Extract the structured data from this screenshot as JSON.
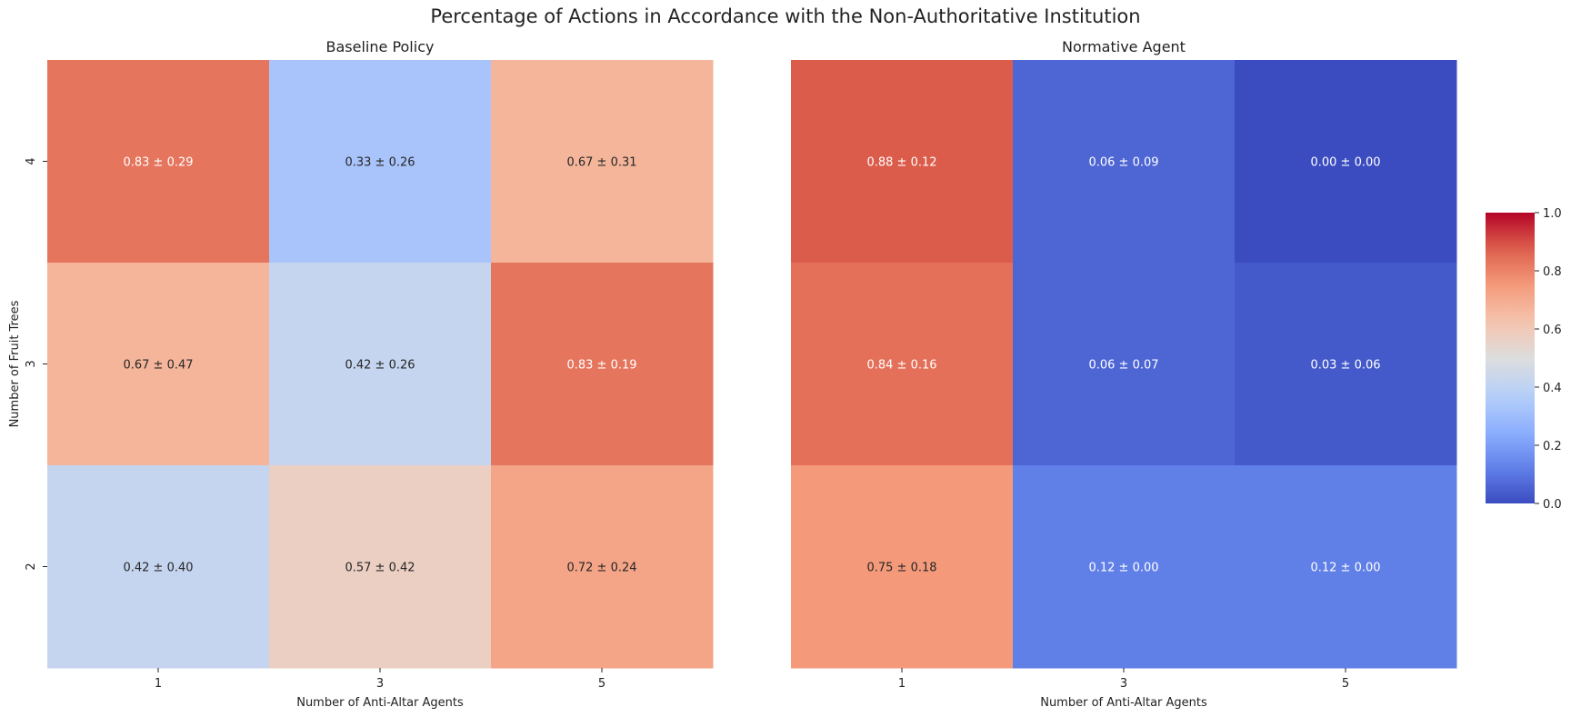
{
  "figure": {
    "suptitle": "Percentage of Actions in Accordance with the Non-Authoritative Institution"
  },
  "chart_data": [
    {
      "type": "heatmap",
      "title": "Baseline Policy",
      "xlabel": "Number of Anti-Altar Agents",
      "ylabel": "Number of Fruit Trees",
      "x_categories": [
        "1",
        "3",
        "5"
      ],
      "y_categories": [
        "4",
        "3",
        "2"
      ],
      "values": [
        [
          0.83,
          0.33,
          0.67
        ],
        [
          0.67,
          0.42,
          0.83
        ],
        [
          0.42,
          0.57,
          0.72
        ]
      ],
      "annotations": [
        [
          "0.83 ± 0.29",
          "0.33 ± 0.26",
          "0.67 ± 0.31"
        ],
        [
          "0.67 ± 0.47",
          "0.42 ± 0.26",
          "0.83 ± 0.19"
        ],
        [
          "0.42 ± 0.40",
          "0.57 ± 0.42",
          "0.72 ± 0.24"
        ]
      ]
    },
    {
      "type": "heatmap",
      "title": "Normative Agent",
      "xlabel": "Number of Anti-Altar Agents",
      "ylabel": "",
      "x_categories": [
        "1",
        "3",
        "5"
      ],
      "y_categories": [
        "4",
        "3",
        "2"
      ],
      "values": [
        [
          0.88,
          0.06,
          0.0
        ],
        [
          0.84,
          0.06,
          0.03
        ],
        [
          0.75,
          0.12,
          0.12
        ]
      ],
      "annotations": [
        [
          "0.88 ± 0.12",
          "0.06 ± 0.09",
          "0.00 ± 0.00"
        ],
        [
          "0.84 ± 0.16",
          "0.06 ± 0.07",
          "0.03 ± 0.06"
        ],
        [
          "0.75 ± 0.18",
          "0.12 ± 0.00",
          "0.12 ± 0.00"
        ]
      ]
    }
  ],
  "colorbar": {
    "colormap": "coolwarm",
    "vmin": 0,
    "vmax": 1,
    "ticks": [
      "0.0",
      "0.2",
      "0.4",
      "0.6",
      "0.8",
      "1.0"
    ]
  }
}
